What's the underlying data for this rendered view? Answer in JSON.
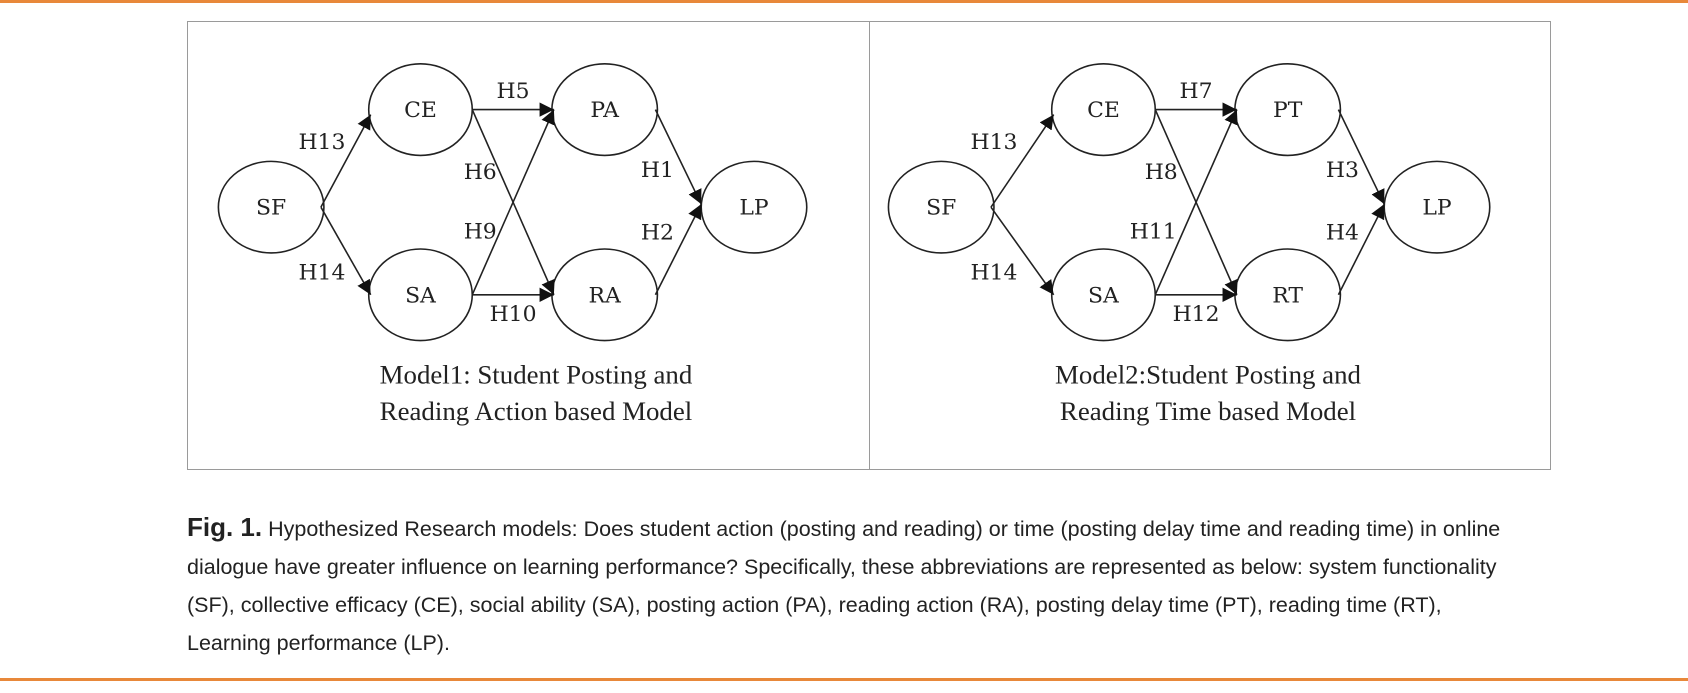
{
  "models": [
    {
      "nodes": {
        "sf": "SF",
        "ce": "CE",
        "sa": "SA",
        "top_mid": "PA",
        "bot_mid": "RA",
        "lp": "LP"
      },
      "edges": {
        "sf_ce": "H13",
        "sf_sa": "H14",
        "ce_top": "H5",
        "ce_bot": "H6",
        "sa_top": "H9",
        "sa_bot": "H10",
        "top_lp": "H1",
        "bot_lp": "H2"
      },
      "caption_lines": [
        "Model1: Student Posting and",
        "Reading Action based Model"
      ]
    },
    {
      "nodes": {
        "sf": "SF",
        "ce": "CE",
        "sa": "SA",
        "top_mid": "PT",
        "bot_mid": "RT",
        "lp": "LP"
      },
      "edges": {
        "sf_ce": "H13",
        "sf_sa": "H14",
        "ce_top": "H7",
        "ce_bot": "H8",
        "sa_top": "H11",
        "sa_bot": "H12",
        "top_lp": "H3",
        "bot_lp": "H4"
      },
      "caption_lines": [
        "Model2:Student Posting and",
        "Reading Time based Model"
      ]
    }
  ],
  "figure_caption": {
    "label": "Fig. 1.",
    "text": "Hypothesized Research models: Does student action (posting and reading) or time (posting delay time and reading time) in online dialogue have greater influence on learning performance? Specifically, these abbreviations are represented as below: system functionality (SF), collective efficacy (CE), social ability (SA), posting action (PA), reading action (RA), posting delay time (PT), reading time (RT), Learning performance (LP)."
  }
}
